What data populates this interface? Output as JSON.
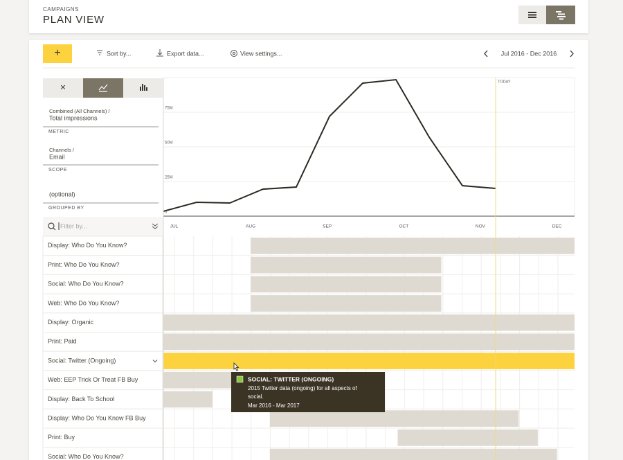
{
  "header": {
    "section": "CAMPAIGNS",
    "title": "PLAN VIEW"
  },
  "toolbar": {
    "add": "+",
    "sort": "Sort by...",
    "export": "Export data...",
    "settings": "View settings...",
    "range": "Jul 2016 - Dec 2016"
  },
  "panel": {
    "tabs": [
      "×"
    ],
    "metric": {
      "path": "Combined (All Channels) /",
      "value": "Total impressions",
      "label": "METRIC"
    },
    "scope": {
      "path": "Channels /",
      "value": "Email",
      "label": "SCOPE"
    },
    "grouped": {
      "value": "(optional)",
      "label": "GROUPED BY"
    },
    "filter": "Filter by..."
  },
  "chart_data": {
    "type": "line",
    "categories": [
      null,
      null,
      null,
      null,
      null,
      null,
      null,
      null,
      null,
      null,
      null
    ],
    "series": [
      {
        "name": null,
        "color": "#2b2a22",
        "values": [
          3500000,
          10000000,
          9500000,
          19500000,
          21000000,
          72000000,
          96000000,
          98500000,
          57000000,
          22000000,
          20000000
        ]
      }
    ],
    "ylim": [
      0,
      100000000
    ],
    "yticks": [
      0,
      {
        "value": 25000000,
        "label": "25M"
      },
      {
        "value": 50000000,
        "label": "50M"
      },
      {
        "value": 75000000,
        "label": "75M"
      }
    ],
    "grid": true
  },
  "gantt": {
    "xlim": [
      -0.14,
      5.23
    ],
    "months": [
      {
        "value": 0,
        "label": "JUL"
      },
      {
        "value": 1,
        "label": "AUG"
      },
      {
        "value": 2,
        "label": "SEP"
      },
      {
        "value": 3,
        "label": "OCT"
      },
      {
        "value": 4,
        "label": "NOV"
      },
      {
        "value": 5,
        "label": "DEC"
      }
    ],
    "today": {
      "value": 4.2,
      "label": "TODAY"
    },
    "bar_color": "#dedad2",
    "selected_color": "#fdd23f",
    "rows": [
      {
        "name": "Display: Who Do You Know?",
        "start": 1,
        "end": 5.23
      },
      {
        "name": "Print: Who Do You Know?",
        "start": 1,
        "end": 3.49
      },
      {
        "name": "Social: Who Do You Know?",
        "start": 1,
        "end": 3.49
      },
      {
        "name": "Web: Who Do You Know?",
        "start": 1,
        "end": 3.49
      },
      {
        "name": "Display: Organic",
        "start": -0.14,
        "end": 5.23
      },
      {
        "name": "Print: Paid",
        "start": -0.14,
        "end": 5.23
      },
      {
        "name": "Social: Twitter (Ongoing)",
        "start": -0.14,
        "end": 5.23,
        "selected": true
      },
      {
        "name": "Web: EEP Trick Or Treat FB Buy",
        "start": -0.14,
        "end": 0.9
      },
      {
        "name": "Display: Back To School",
        "start": -0.14,
        "end": 0.5
      },
      {
        "name": "Display: Who Do You Know FB Buy",
        "start": 1.25,
        "end": 4.5
      },
      {
        "name": "Print: Buy",
        "start": 2.92,
        "end": 4.75
      },
      {
        "name": "Social: Who Do You Know?",
        "start": 1.25,
        "end": 5.0
      }
    ]
  },
  "tooltip": {
    "title": "SOCIAL: TWITTER (ONGOING)",
    "lines": [
      "2015 Twitter data (ongoing) for all aspects of",
      "social."
    ],
    "dates": "Mar 2016 - Mar 2017",
    "color": "#8dc63f"
  }
}
